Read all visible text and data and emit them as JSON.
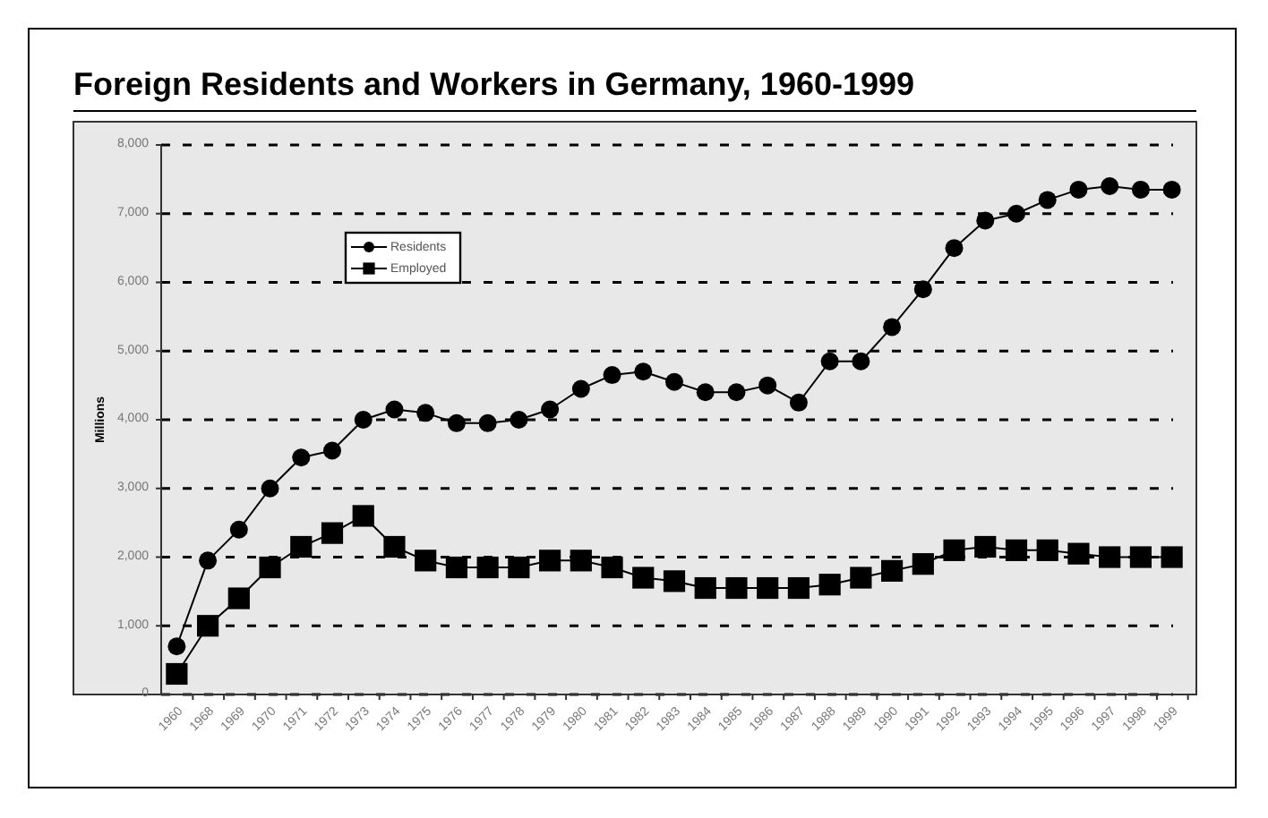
{
  "chart_data": {
    "type": "line",
    "title": "Foreign Residents and Workers in Germany, 1960-1999",
    "ylabel": "Millions",
    "categories": [
      "1960",
      "1968",
      "1969",
      "1970",
      "1971",
      "1972",
      "1973",
      "1974",
      "1975",
      "1976",
      "1977",
      "1978",
      "1979",
      "1980",
      "1981",
      "1982",
      "1983",
      "1984",
      "1985",
      "1986",
      "1987",
      "1988",
      "1989",
      "1990",
      "1991",
      "1992",
      "1993",
      "1994",
      "1995",
      "1996",
      "1997",
      "1998",
      "1999"
    ],
    "series": [
      {
        "name": "Residents",
        "color": "#000000",
        "marker": "circle",
        "values": [
          700,
          1950,
          2400,
          3000,
          3450,
          3550,
          4000,
          4150,
          4100,
          3950,
          3950,
          4000,
          4150,
          4450,
          4650,
          4700,
          4550,
          4400,
          4400,
          4500,
          4250,
          4850,
          4850,
          5350,
          5900,
          6500,
          6900,
          7000,
          7200,
          7350,
          7400,
          7350,
          7350
        ]
      },
      {
        "name": "Employed",
        "color": "#000000",
        "marker": "square",
        "values": [
          300,
          1000,
          1400,
          1850,
          2150,
          2350,
          2600,
          2150,
          1950,
          1850,
          1850,
          1850,
          1950,
          1950,
          1850,
          1700,
          1650,
          1550,
          1550,
          1550,
          1550,
          1600,
          1700,
          1800,
          1900,
          2100,
          2150,
          2100,
          2100,
          2050,
          2000,
          2000,
          2000
        ]
      }
    ],
    "ylim": [
      0,
      8000
    ],
    "yticks": [
      {
        "value": 0,
        "label": "0"
      },
      {
        "value": 1000,
        "label": "1,000"
      },
      {
        "value": 2000,
        "label": "2,000"
      },
      {
        "value": 3000,
        "label": "3,000"
      },
      {
        "value": 4000,
        "label": "4,000"
      },
      {
        "value": 5000,
        "label": "5,000"
      },
      {
        "value": 6000,
        "label": "6,000"
      },
      {
        "value": 7000,
        "label": "7,000"
      },
      {
        "value": 8000,
        "label": "8,000"
      }
    ],
    "grid": "y",
    "legend": "top left",
    "line_style": "solid"
  }
}
